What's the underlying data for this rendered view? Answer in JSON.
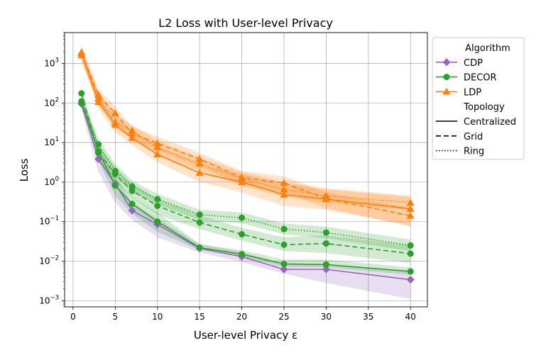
{
  "chart_data": {
    "type": "line",
    "title": "L2 Loss with User-level Privacy",
    "xlabel": "User-level Privacy ε",
    "ylabel": "Loss",
    "xlim": [
      -1,
      42
    ],
    "ylim": [
      0.0007,
      6000
    ],
    "yscale": "log",
    "grid": true,
    "legend_position": "outside-right",
    "xticks": [
      0,
      5,
      10,
      15,
      20,
      25,
      30,
      35,
      40
    ],
    "xtick_labels": [
      "0",
      "5",
      "10",
      "15",
      "20",
      "25",
      "30",
      "35",
      "40"
    ],
    "yticks": [
      0.001,
      0.01,
      0.1,
      1,
      10,
      100,
      1000
    ],
    "ytick_labels": [
      {
        "base": "10",
        "exp": "−3"
      },
      {
        "base": "10",
        "exp": "−2"
      },
      {
        "base": "10",
        "exp": "−1"
      },
      {
        "base": "10",
        "exp": "0"
      },
      {
        "base": "10",
        "exp": "1"
      },
      {
        "base": "10",
        "exp": "2"
      },
      {
        "base": "10",
        "exp": "3"
      }
    ],
    "x": [
      1,
      3,
      5,
      7,
      10,
      15,
      20,
      25,
      30,
      40
    ],
    "legend": {
      "algorithm_header": "Algorithm",
      "algorithms": [
        {
          "name": "CDP",
          "color": "#9467bd",
          "marker": "diamond"
        },
        {
          "name": "DECOR",
          "color": "#2ca02c",
          "marker": "circle"
        },
        {
          "name": "LDP",
          "color": "#ff7f0e",
          "marker": "triangle"
        }
      ],
      "topology_header": "Topology",
      "topologies": [
        {
          "name": "Centralized",
          "dash": "solid"
        },
        {
          "name": "Grid",
          "dash": "dashed"
        },
        {
          "name": "Ring",
          "dash": "dotted"
        }
      ]
    },
    "series": [
      {
        "algorithm": "CDP",
        "topology": "Centralized",
        "color": "#9467bd",
        "marker": "diamond",
        "dash": "solid",
        "values": [
          95,
          3.8,
          0.9,
          0.19,
          0.085,
          0.021,
          0.013,
          0.0062,
          0.0062,
          0.0034
        ],
        "band_low": [
          70,
          1.8,
          0.3,
          0.11,
          0.04,
          0.0165,
          0.0095,
          0.0048,
          0.0028,
          0.0011
        ],
        "band_high": [
          130,
          5.2,
          1.3,
          0.3,
          0.12,
          0.027,
          0.017,
          0.0085,
          0.0085,
          0.0052
        ]
      },
      {
        "algorithm": "DECOR",
        "topology": "Centralized",
        "color": "#2ca02c",
        "marker": "circle",
        "dash": "solid",
        "values": [
          110,
          6,
          0.82,
          0.28,
          0.1,
          0.022,
          0.015,
          0.0085,
          0.0082,
          0.0055
        ],
        "band_low": [
          80,
          3.5,
          0.45,
          0.16,
          0.055,
          0.019,
          0.013,
          0.0072,
          0.007,
          0.0045
        ],
        "band_high": [
          150,
          9,
          1.3,
          0.42,
          0.17,
          0.027,
          0.019,
          0.011,
          0.011,
          0.007
        ]
      },
      {
        "algorithm": "DECOR",
        "topology": "Grid",
        "color": "#2ca02c",
        "marker": "circle",
        "dash": "dashed",
        "values": [
          175,
          5.5,
          1.6,
          0.6,
          0.25,
          0.095,
          0.048,
          0.026,
          0.028,
          0.0155
        ],
        "band_low": [
          120,
          3.3,
          1.0,
          0.4,
          0.15,
          0.065,
          0.033,
          0.018,
          0.016,
          0.009
        ],
        "band_high": [
          250,
          8.5,
          2.4,
          0.9,
          0.38,
          0.14,
          0.07,
          0.04,
          0.045,
          0.025
        ]
      },
      {
        "algorithm": "DECOR",
        "topology": "Ring",
        "color": "#2ca02c",
        "marker": "circle",
        "dash": "dotted",
        "values": [
          100,
          9,
          1.9,
          0.78,
          0.37,
          0.15,
          0.125,
          0.065,
          0.053,
          0.025
        ],
        "band_low": [
          75,
          6,
          1.3,
          0.55,
          0.27,
          0.11,
          0.09,
          0.048,
          0.038,
          0.018
        ],
        "band_high": [
          140,
          13,
          2.8,
          1.1,
          0.5,
          0.2,
          0.17,
          0.09,
          0.075,
          0.035
        ]
      },
      {
        "algorithm": "LDP",
        "topology": "Centralized",
        "color": "#ff7f0e",
        "marker": "triangle",
        "dash": "solid",
        "values": [
          1900,
          105,
          28,
          13,
          5,
          1.7,
          1.0,
          0.48,
          0.37,
          0.21
        ],
        "band_low": [
          1300,
          70,
          18,
          8.5,
          3.2,
          1.0,
          0.55,
          0.25,
          0.2,
          0.08
        ],
        "band_high": [
          2700,
          160,
          45,
          20,
          8,
          2.8,
          1.6,
          0.9,
          0.65,
          0.42
        ]
      },
      {
        "algorithm": "LDP",
        "topology": "Grid",
        "color": "#ff7f0e",
        "marker": "triangle",
        "dash": "dashed",
        "values": [
          1800,
          160,
          55,
          17,
          9.5,
          3.8,
          1.3,
          0.95,
          0.38,
          0.14
        ],
        "band_low": [
          1200,
          100,
          35,
          11,
          6.5,
          2.5,
          0.85,
          0.55,
          0.22,
          0.075
        ],
        "band_high": [
          2600,
          230,
          80,
          25,
          14,
          5.5,
          1.9,
          1.4,
          0.55,
          0.22
        ]
      },
      {
        "algorithm": "LDP",
        "topology": "Ring",
        "color": "#ff7f0e",
        "marker": "triangle",
        "dash": "dotted",
        "values": [
          1600,
          130,
          32,
          20,
          7.5,
          2.9,
          1.2,
          0.65,
          0.45,
          0.3
        ],
        "band_low": [
          1100,
          90,
          22,
          13,
          5,
          1.9,
          0.8,
          0.42,
          0.3,
          0.2
        ],
        "band_high": [
          2300,
          190,
          50,
          28,
          11,
          4.2,
          1.8,
          1.0,
          0.7,
          0.45
        ]
      }
    ]
  }
}
